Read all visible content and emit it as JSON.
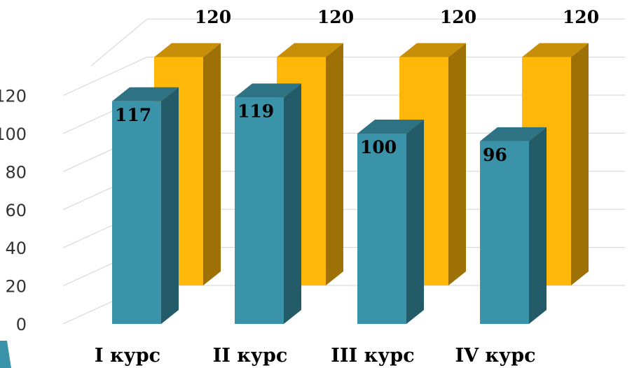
{
  "chart_data": {
    "type": "bar",
    "categories": [
      "I курс",
      "II курс",
      "III курс",
      "IV курс"
    ],
    "series": [
      {
        "values": [
          117,
          119,
          100,
          96
        ],
        "color": "#3a93a8"
      },
      {
        "values": [
          120,
          120,
          120,
          120
        ],
        "color": "#ffb70a"
      }
    ],
    "ylim": [
      0,
      120
    ],
    "yticks": [
      0,
      20,
      40,
      60,
      80,
      100,
      120
    ],
    "grid": true,
    "legend": "none",
    "data_labels": true,
    "title": "",
    "xlabel": "",
    "ylabel": ""
  }
}
